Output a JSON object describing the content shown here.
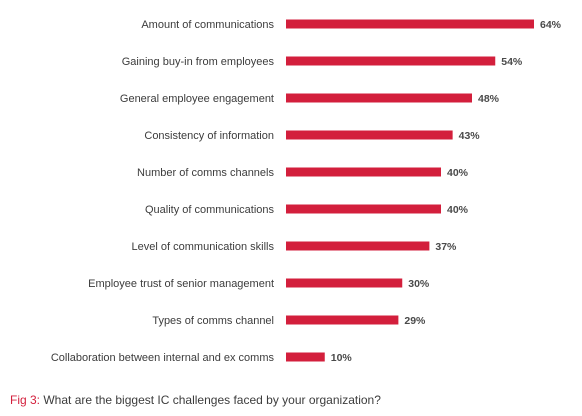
{
  "chart_data": {
    "type": "bar",
    "orientation": "horizontal",
    "categories": [
      "Amount of communications",
      "Gaining buy-in from employees",
      "General employee engagement",
      "Consistency of information",
      "Number of comms channels",
      "Quality of communications",
      "Level of communication skills",
      "Employee trust of senior management",
      "Types of comms channel",
      "Collaboration between internal and ex comms"
    ],
    "values": [
      64,
      54,
      48,
      43,
      40,
      40,
      37,
      30,
      29,
      10
    ],
    "value_labels": [
      "64%",
      "54%",
      "48%",
      "43%",
      "40%",
      "40%",
      "37%",
      "30%",
      "29%",
      "10%"
    ],
    "unit": "%",
    "bar_color": "#d31f3c",
    "xlim": [
      0,
      64
    ],
    "grid": false,
    "legend": "none"
  },
  "caption": {
    "fig_label": "Fig 3:",
    "text": " What are the biggest IC challenges faced by your organization?"
  }
}
